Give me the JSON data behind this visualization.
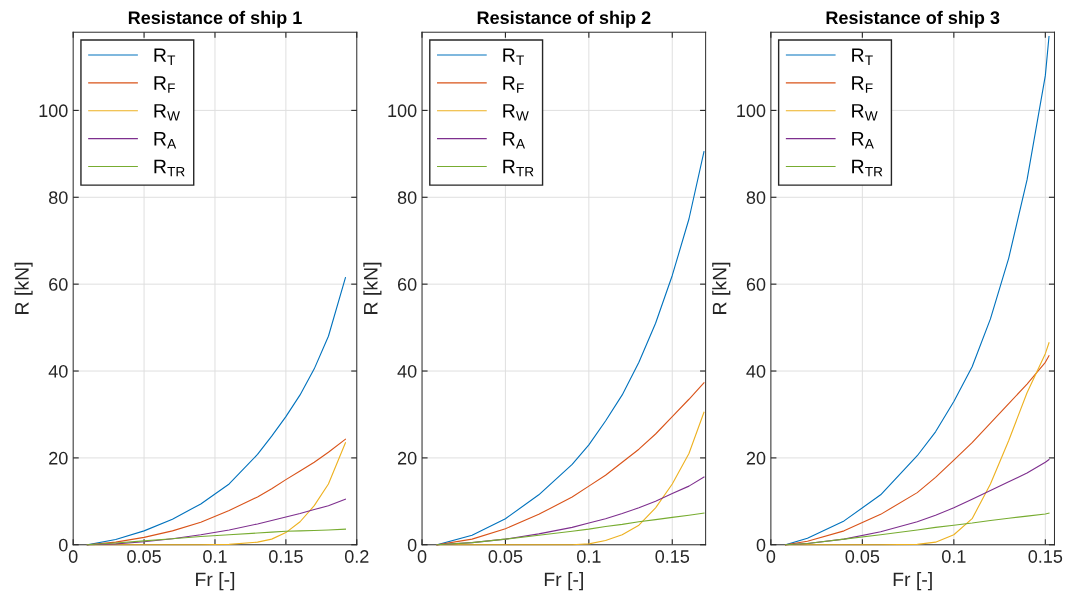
{
  "chart_data": [
    {
      "type": "line",
      "title": "Resistance of ship 1",
      "xlabel": "Fr [-]",
      "ylabel": "R [kN]",
      "grid": true,
      "legend": "top left",
      "x": [
        0.01,
        0.03,
        0.05,
        0.07,
        0.09,
        0.11,
        0.13,
        0.14,
        0.15,
        0.16,
        0.17,
        0.18,
        0.192
      ],
      "xlim": [
        0,
        0.2
      ],
      "xticks": [
        0,
        0.05,
        0.1,
        0.15,
        0.2
      ],
      "ylim": [
        0,
        118
      ],
      "yticks": [
        0,
        20,
        40,
        60,
        80,
        100
      ],
      "series": [
        {
          "name": "R$_{T}$",
          "color": "#0072bd",
          "values": [
            0,
            1.2,
            3.2,
            5.9,
            9.4,
            14,
            20.8,
            25,
            29.5,
            34.5,
            40.5,
            48,
            61.5
          ]
        },
        {
          "name": "R$_{F}$",
          "color": "#d95319",
          "values": [
            0,
            0.6,
            1.7,
            3.2,
            5.2,
            7.9,
            11,
            12.9,
            15,
            17,
            19,
            21.3,
            24.3
          ]
        },
        {
          "name": "R$_{W}$",
          "color": "#edb120",
          "values": [
            0,
            0,
            0,
            0,
            0,
            0.1,
            0.6,
            1.3,
            2.8,
            5.3,
            9,
            14,
            23.5
          ]
        },
        {
          "name": "R$_{A}$",
          "color": "#7e2f8e",
          "values": [
            0,
            0.2,
            0.7,
            1.4,
            2.3,
            3.4,
            4.8,
            5.6,
            6.4,
            7.2,
            8.1,
            9,
            10.5
          ]
        },
        {
          "name": "R$_{TR}$",
          "color": "#77ac30",
          "values": [
            0,
            0.4,
            0.9,
            1.4,
            1.9,
            2.3,
            2.7,
            2.9,
            3.1,
            3.2,
            3.3,
            3.4,
            3.6
          ]
        }
      ]
    },
    {
      "type": "line",
      "title": "Resistance of ship 2",
      "xlabel": "Fr [-]",
      "ylabel": "R [kN]",
      "grid": true,
      "legend": "top left",
      "x": [
        0.009,
        0.03,
        0.05,
        0.07,
        0.09,
        0.1,
        0.11,
        0.12,
        0.13,
        0.14,
        0.15,
        0.16,
        0.169
      ],
      "xlim": [
        0,
        0.17
      ],
      "xticks": [
        0,
        0.05,
        0.1,
        0.15
      ],
      "ylim": [
        0,
        118
      ],
      "yticks": [
        0,
        20,
        40,
        60,
        80,
        100
      ],
      "series": [
        {
          "name": "R$_{T}$",
          "color": "#0072bd",
          "values": [
            0,
            2.2,
            6,
            11.5,
            18.5,
            23,
            28.5,
            34.5,
            42,
            51,
            62,
            75,
            90.5
          ]
        },
        {
          "name": "R$_{F}$",
          "color": "#d95319",
          "values": [
            0,
            1.3,
            3.7,
            7,
            11,
            13.5,
            16,
            19,
            22,
            25.5,
            29.5,
            33.5,
            37.3
          ]
        },
        {
          "name": "R$_{W}$",
          "color": "#edb120",
          "values": [
            0,
            0,
            0,
            0,
            0,
            0.2,
            1,
            2.3,
            4.5,
            8.5,
            14,
            21,
            30.5
          ]
        },
        {
          "name": "R$_{A}$",
          "color": "#7e2f8e",
          "values": [
            0,
            0.5,
            1.3,
            2.5,
            4,
            5,
            6,
            7.2,
            8.5,
            10,
            11.8,
            13.5,
            15.6
          ]
        },
        {
          "name": "R$_{TR}$",
          "color": "#77ac30",
          "values": [
            0,
            0.5,
            1.3,
            2.2,
            3.1,
            3.6,
            4.2,
            4.7,
            5.3,
            5.8,
            6.3,
            6.8,
            7.3
          ]
        }
      ]
    },
    {
      "type": "line",
      "title": "Resistance of ship 3",
      "xlabel": "Fr [-]",
      "ylabel": "R [kN]",
      "grid": true,
      "legend": "top left",
      "x": [
        0.008,
        0.02,
        0.04,
        0.06,
        0.08,
        0.09,
        0.1,
        0.11,
        0.12,
        0.13,
        0.14,
        0.15,
        0.152
      ],
      "xlim": [
        0,
        0.155
      ],
      "xticks": [
        0,
        0.05,
        0.1,
        0.15
      ],
      "ylim": [
        0,
        118
      ],
      "yticks": [
        0,
        20,
        40,
        60,
        80,
        100
      ],
      "series": [
        {
          "name": "R$_{T}$",
          "color": "#0072bd",
          "values": [
            0,
            1.5,
            5.5,
            11.5,
            20.5,
            26,
            33,
            41,
            52,
            66,
            84,
            108,
            117
          ]
        },
        {
          "name": "R$_{F}$",
          "color": "#d95319",
          "values": [
            0,
            0.8,
            3.2,
            7,
            12,
            15.5,
            19.5,
            23.5,
            28,
            32.5,
            37,
            42,
            43.5
          ]
        },
        {
          "name": "R$_{W}$",
          "color": "#edb120",
          "values": [
            0,
            0,
            0,
            0,
            0.1,
            0.6,
            2.3,
            6,
            14,
            24,
            35,
            44,
            46.5
          ]
        },
        {
          "name": "R$_{A}$",
          "color": "#7e2f8e",
          "values": [
            0,
            0.3,
            1.3,
            3,
            5.3,
            6.8,
            8.5,
            10.5,
            12.5,
            14.5,
            16.5,
            19,
            19.6
          ]
        },
        {
          "name": "R$_{TR}$",
          "color": "#77ac30",
          "values": [
            0,
            0.3,
            1.3,
            2.3,
            3.4,
            4,
            4.5,
            5,
            5.6,
            6.1,
            6.6,
            7.1,
            7.3
          ]
        }
      ]
    }
  ]
}
